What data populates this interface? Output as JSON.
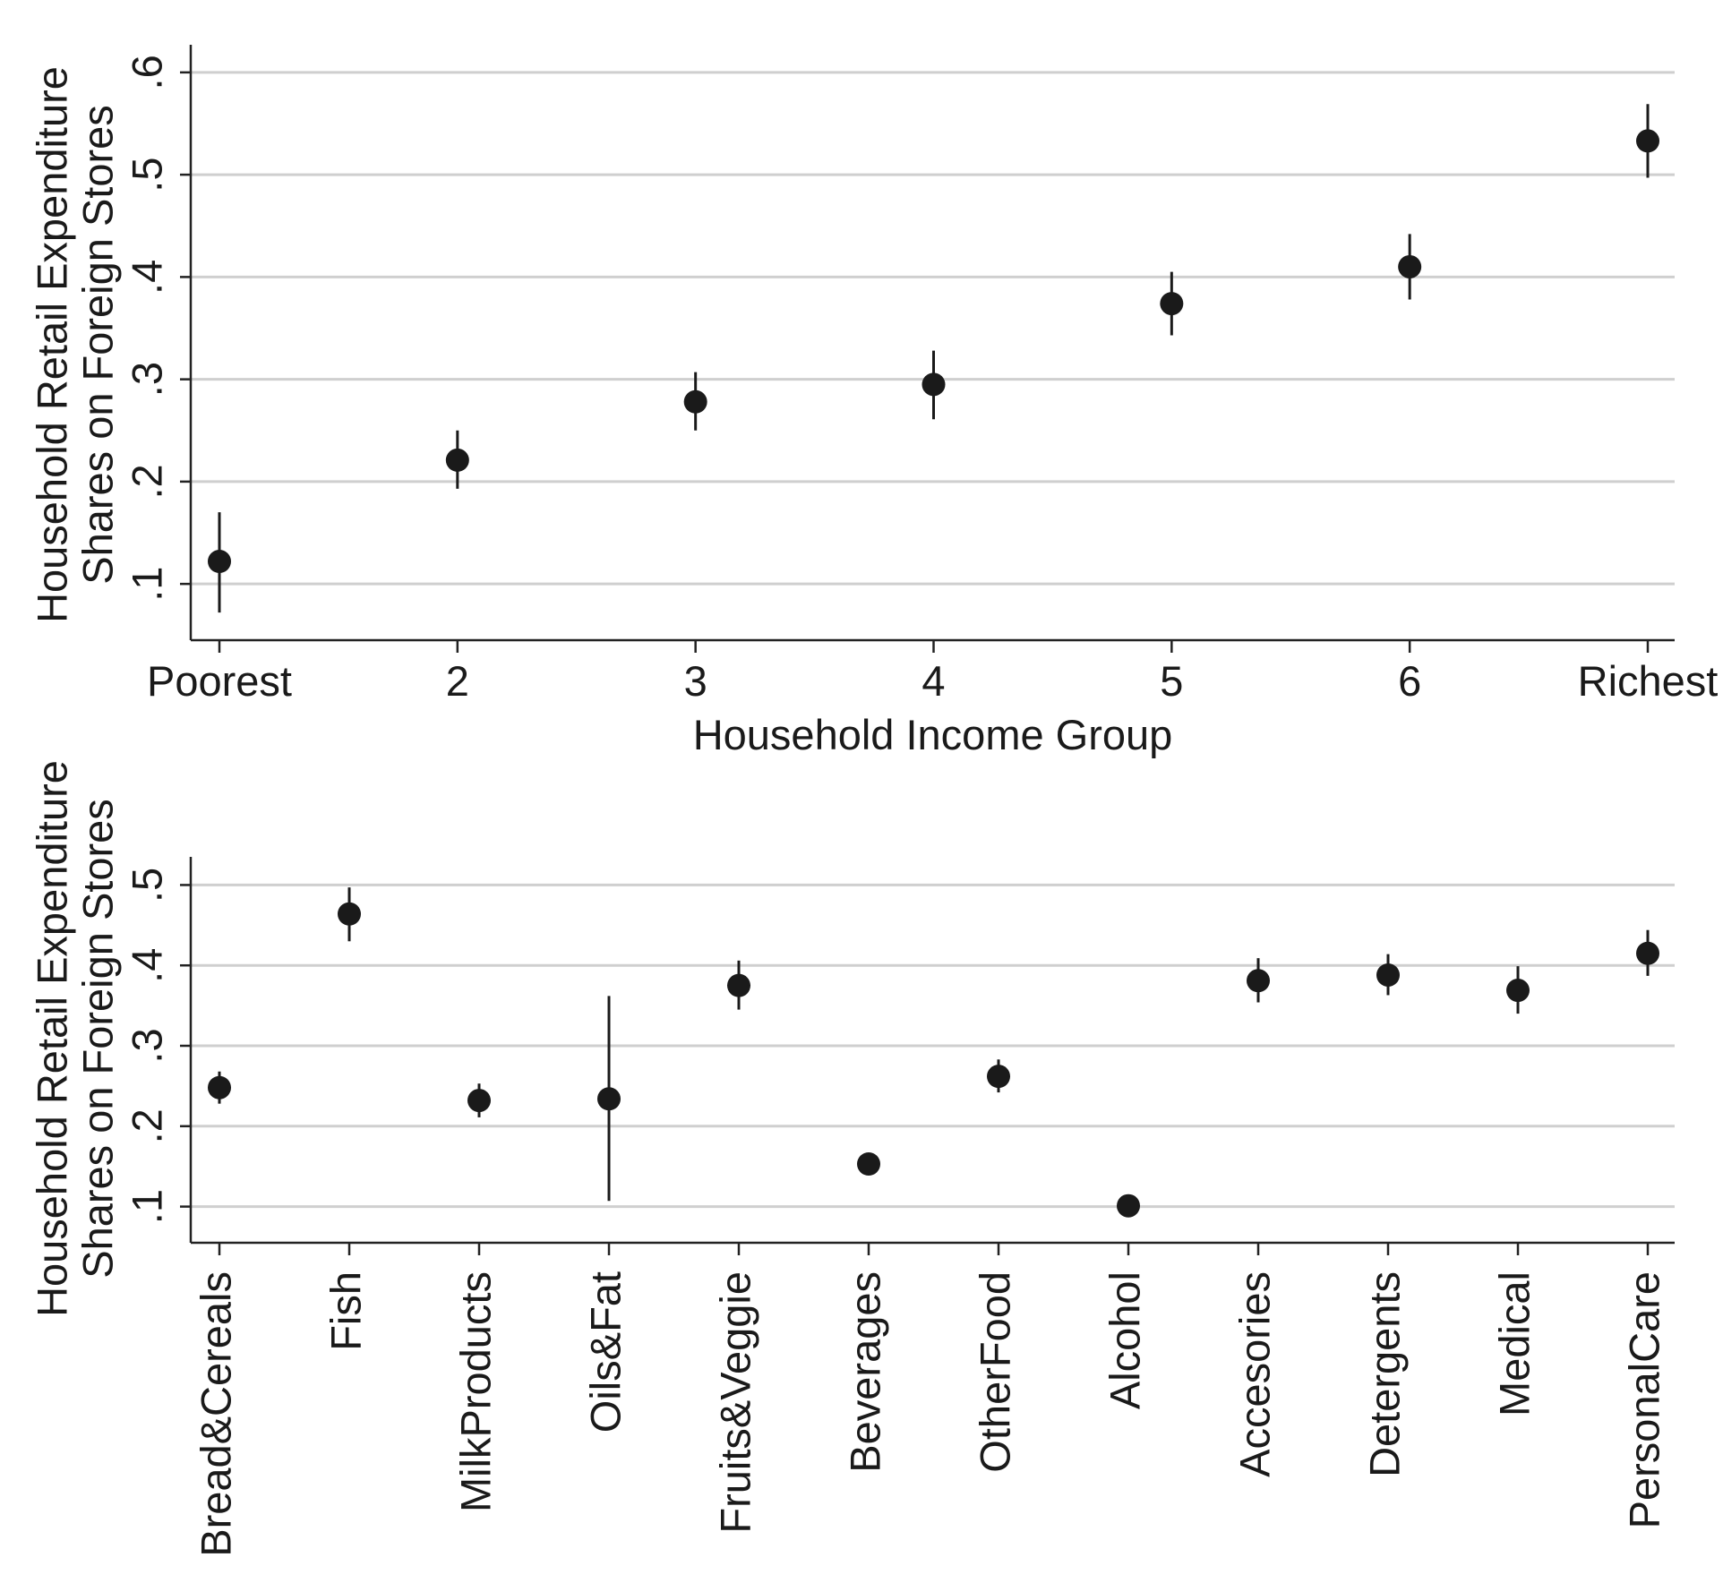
{
  "chart_data": [
    {
      "type": "scatter",
      "ylabel_lines": [
        "Household Retail Expenditure",
        "Shares on Foreign Stores"
      ],
      "xlabel": "Household Income Group",
      "categories": [
        "Poorest",
        "2",
        "3",
        "4",
        "5",
        "6",
        "Richest"
      ],
      "values": [
        0.122,
        0.221,
        0.278,
        0.295,
        0.374,
        0.41,
        0.533
      ],
      "ci_low": [
        0.072,
        0.193,
        0.25,
        0.261,
        0.343,
        0.378,
        0.497
      ],
      "ci_high": [
        0.17,
        0.25,
        0.307,
        0.328,
        0.405,
        0.442,
        0.569
      ],
      "yticks": [
        0.1,
        0.2,
        0.3,
        0.4,
        0.5,
        0.6
      ],
      "ytick_labels": [
        ".1",
        ".2",
        ".3",
        ".4",
        ".5",
        ".6"
      ],
      "ylim": [
        0.045,
        0.627
      ],
      "grid": true,
      "marker_color": "#1a1a1a"
    },
    {
      "type": "scatter",
      "ylabel_lines": [
        "Household Retail Expenditure",
        "Shares on Foreign Stores"
      ],
      "xlabel": "",
      "categories": [
        "Bread&Cereals",
        "Fish",
        "MilkProducts",
        "Oils&Fat",
        "Fruits&Veggie",
        "Beverages",
        "OtherFood",
        "Alcohol",
        "Accesories",
        "Detergents",
        "Medical",
        "PersonalCare"
      ],
      "values": [
        0.248,
        0.464,
        0.232,
        0.234,
        0.375,
        0.153,
        0.262,
        0.101,
        0.381,
        0.388,
        0.369,
        0.415
      ],
      "ci_low": [
        0.228,
        0.43,
        0.211,
        0.107,
        0.345,
        0.14,
        0.242,
        0.09,
        0.354,
        0.363,
        0.34,
        0.387
      ],
      "ci_high": [
        0.268,
        0.497,
        0.253,
        0.362,
        0.406,
        0.166,
        0.283,
        0.112,
        0.409,
        0.414,
        0.399,
        0.444
      ],
      "yticks": [
        0.1,
        0.2,
        0.3,
        0.4,
        0.5
      ],
      "ytick_labels": [
        ".1",
        ".2",
        ".3",
        ".4",
        ".5"
      ],
      "ylim": [
        0.055,
        0.535
      ],
      "grid": true,
      "marker_color": "#1a1a1a"
    }
  ]
}
